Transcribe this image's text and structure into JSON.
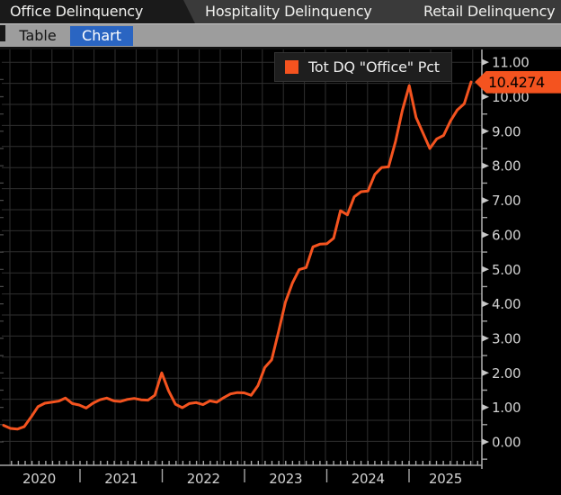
{
  "header": {
    "tabs": [
      {
        "label": "Office Delinquency",
        "active": true
      },
      {
        "label": "Hospitality Delinquency",
        "active": false
      },
      {
        "label": "Retail Delinquency",
        "active": false
      }
    ],
    "view_switcher": {
      "table_label": "Table",
      "chart_label": "Chart",
      "selected": "Chart",
      "selected_bg": "#2a65c2"
    }
  },
  "chart": {
    "legend": {
      "label": "Tot DQ \"Office\" Pct",
      "swatch_color": "#f4531f"
    },
    "badge": {
      "text": "10.4274",
      "bg": "#f4531f",
      "text_color": "#000000"
    },
    "y_axis": {
      "tick_labels": [
        "11.00",
        "10.00",
        "9.00",
        "8.00",
        "7.00",
        "6.00",
        "5.00",
        "4.00",
        "3.00",
        "2.00",
        "1.00",
        "0.00"
      ],
      "minor_step": 0.5
    },
    "x_axis": {
      "year_labels": [
        "2020",
        "2021",
        "2022",
        "2023",
        "2024",
        "2025"
      ]
    },
    "colors": {
      "background": "#000000",
      "grid": "#2f2f2f",
      "axis": "#a6a6a6",
      "tick_arrow": "#c8c8c8",
      "label": "#d2d2d2",
      "line": "#f4531f"
    }
  },
  "chart_data": {
    "type": "line",
    "title": "",
    "legend_position": "top-right",
    "grid": true,
    "x_start": "2020-01",
    "x_frequency": "monthly",
    "x_year_ticks": [
      2020,
      2021,
      2022,
      2023,
      2024,
      2025
    ],
    "ylim": [
      -0.7,
      11.45
    ],
    "y_ticks": [
      0,
      1,
      2,
      3,
      4,
      5,
      6,
      7,
      8,
      9,
      10,
      11
    ],
    "last_value": 10.4274,
    "series": [
      {
        "name": "Tot DQ \"Office\" Pct",
        "color": "#f4531f",
        "values": [
          0.48,
          0.39,
          0.37,
          0.44,
          0.72,
          1.02,
          1.12,
          1.15,
          1.18,
          1.27,
          1.11,
          1.07,
          0.98,
          1.12,
          1.22,
          1.27,
          1.19,
          1.17,
          1.23,
          1.26,
          1.22,
          1.21,
          1.35,
          2.0,
          1.48,
          1.09,
          0.99,
          1.11,
          1.14,
          1.08,
          1.19,
          1.15,
          1.28,
          1.39,
          1.43,
          1.42,
          1.35,
          1.63,
          2.16,
          2.38,
          3.2,
          4.05,
          4.6,
          4.99,
          5.05,
          5.65,
          5.73,
          5.74,
          5.9,
          6.7,
          6.58,
          7.1,
          7.25,
          7.27,
          7.75,
          7.95,
          7.97,
          8.7,
          9.6,
          10.32,
          9.4,
          8.95,
          8.5,
          8.78,
          8.88,
          9.3,
          9.62,
          9.8,
          10.4274
        ]
      }
    ]
  }
}
